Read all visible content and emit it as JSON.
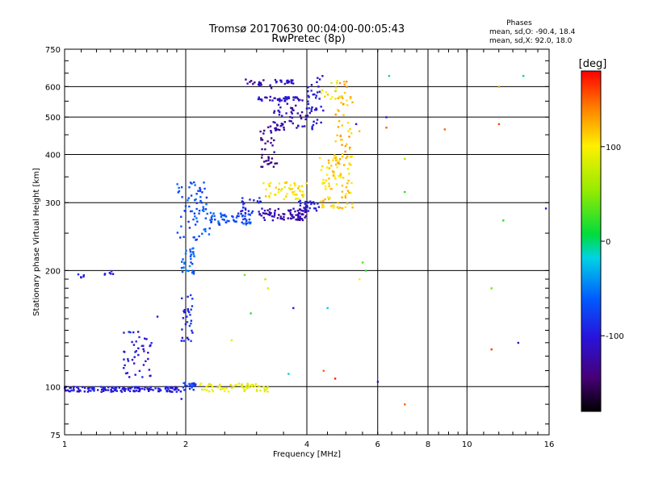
{
  "chart_data": {
    "type": "scatter",
    "title": "Tromsø 20170630 00:04:00-00:05:43",
    "subtitle": "RwPretec (8p)",
    "xlabel": "Frequency [MHz]",
    "ylabel": "Stationary phase Virtual Height [km]",
    "x_scale": "log",
    "y_scale": "log",
    "xlim": [
      1,
      16
    ],
    "ylim": [
      75,
      750
    ],
    "x_ticks": [
      1,
      2,
      4,
      6,
      8,
      10,
      16
    ],
    "y_ticks": [
      75,
      100,
      200,
      300,
      400,
      500,
      600,
      750
    ],
    "grid": true,
    "stats": {
      "title": "Phases",
      "line_o": "mean, sd,O: -90.4, 18.4",
      "line_x": "mean, sd,X:  92.0, 18.0"
    },
    "colorbar": {
      "label": "[deg]",
      "range": [
        -180,
        180
      ],
      "ticks": [
        100,
        0,
        -100
      ],
      "colormap": "rainbow"
    },
    "traces": [
      {
        "x_range": [
          1.0,
          1.95
        ],
        "y_range": [
          97,
          100
        ],
        "phase": -100,
        "n": 150
      },
      {
        "x_range": [
          1.95,
          2.12
        ],
        "y_range": [
          98,
          103
        ],
        "phase": -80,
        "n": 20
      },
      {
        "x_range": [
          2.15,
          3.2
        ],
        "y_range": [
          97,
          102
        ],
        "phase": 95,
        "n": 60
      },
      {
        "x_range": [
          1.08,
          1.12
        ],
        "y_range": [
          192,
          196
        ],
        "phase": -100,
        "n": 5
      },
      {
        "x_range": [
          1.25,
          1.33
        ],
        "y_range": [
          195,
          201
        ],
        "phase": -100,
        "n": 6
      },
      {
        "x_range": [
          1.4,
          1.65
        ],
        "y_range": [
          105,
          140
        ],
        "phase": -100,
        "n": 45
      },
      {
        "x_range": [
          1.95,
          2.08
        ],
        "y_range": [
          130,
          175
        ],
        "phase": -90,
        "n": 30
      },
      {
        "x_range": [
          1.95,
          2.1
        ],
        "y_range": [
          195,
          235
        ],
        "phase": -60,
        "n": 30
      },
      {
        "x_range": [
          1.9,
          2.3
        ],
        "y_range": [
          240,
          340
        ],
        "phase": -70,
        "n": 70
      },
      {
        "x_range": [
          2.3,
          2.9
        ],
        "y_range": [
          263,
          283
        ],
        "phase": -70,
        "n": 60
      },
      {
        "x_range": [
          2.7,
          3.1
        ],
        "y_range": [
          280,
          310
        ],
        "phase": -90,
        "n": 25
      },
      {
        "x_range": [
          3.05,
          4.0
        ],
        "y_range": [
          270,
          290
        ],
        "phase": -125,
        "n": 80
      },
      {
        "x_range": [
          3.8,
          4.3
        ],
        "y_range": [
          285,
          305
        ],
        "phase": -100,
        "n": 30
      },
      {
        "x_range": [
          3.1,
          4.0
        ],
        "y_range": [
          305,
          340
        ],
        "phase": 105,
        "n": 50
      },
      {
        "x_range": [
          3.05,
          3.4
        ],
        "y_range": [
          370,
          480
        ],
        "phase": -135,
        "n": 40
      },
      {
        "x_range": [
          3.3,
          4.0
        ],
        "y_range": [
          460,
          560
        ],
        "phase": -120,
        "n": 50
      },
      {
        "x_range": [
          3.0,
          3.9
        ],
        "y_range": [
          550,
          565
        ],
        "phase": -110,
        "n": 40
      },
      {
        "x_range": [
          3.3,
          3.7
        ],
        "y_range": [
          610,
          625
        ],
        "phase": -110,
        "n": 20
      },
      {
        "x_range": [
          2.8,
          3.3
        ],
        "y_range": [
          595,
          630
        ],
        "phase": -120,
        "n": 15
      },
      {
        "x_range": [
          4.0,
          4.4
        ],
        "y_range": [
          460,
          640
        ],
        "phase": -100,
        "n": 40
      },
      {
        "x_range": [
          4.3,
          5.2
        ],
        "y_range": [
          290,
          400
        ],
        "phase": 110,
        "n": 90
      },
      {
        "x_range": [
          4.7,
          5.2
        ],
        "y_range": [
          380,
          630
        ],
        "phase": 120,
        "n": 50
      },
      {
        "x_range": [
          4.3,
          4.9
        ],
        "y_range": [
          540,
          640
        ],
        "phase": 100,
        "n": 15
      }
    ],
    "points": [
      {
        "x": 6.3,
        "y": 500,
        "phase": -100
      },
      {
        "x": 6.3,
        "y": 470,
        "phase": 150
      },
      {
        "x": 6.0,
        "y": 103,
        "phase": -120
      },
      {
        "x": 7.0,
        "y": 90,
        "phase": 150
      },
      {
        "x": 7.0,
        "y": 320,
        "phase": 20
      },
      {
        "x": 7.0,
        "y": 390,
        "phase": 60
      },
      {
        "x": 8.8,
        "y": 465,
        "phase": 150
      },
      {
        "x": 11.5,
        "y": 180,
        "phase": 40
      },
      {
        "x": 11.5,
        "y": 125,
        "phase": 160
      },
      {
        "x": 12.0,
        "y": 600,
        "phase": 130
      },
      {
        "x": 12.0,
        "y": 480,
        "phase": 160
      },
      {
        "x": 12.3,
        "y": 270,
        "phase": 20
      },
      {
        "x": 13.4,
        "y": 130,
        "phase": -120
      },
      {
        "x": 13.8,
        "y": 640,
        "phase": -10
      },
      {
        "x": 15.7,
        "y": 290,
        "phase": -110
      },
      {
        "x": 3.2,
        "y": 180,
        "phase": 80
      },
      {
        "x": 3.15,
        "y": 190,
        "phase": 70
      },
      {
        "x": 2.8,
        "y": 195,
        "phase": 40
      },
      {
        "x": 2.9,
        "y": 155,
        "phase": 20
      },
      {
        "x": 3.7,
        "y": 160,
        "phase": -100
      },
      {
        "x": 4.7,
        "y": 105,
        "phase": 170
      },
      {
        "x": 4.4,
        "y": 110,
        "phase": 150
      },
      {
        "x": 4.5,
        "y": 160,
        "phase": -20
      },
      {
        "x": 5.6,
        "y": 200,
        "phase": 20
      },
      {
        "x": 5.4,
        "y": 190,
        "phase": 100
      },
      {
        "x": 5.5,
        "y": 210,
        "phase": 30
      },
      {
        "x": 5.3,
        "y": 480,
        "phase": -100
      },
      {
        "x": 5.4,
        "y": 460,
        "phase": 120
      },
      {
        "x": 6.4,
        "y": 640,
        "phase": -10
      },
      {
        "x": 3.6,
        "y": 108,
        "phase": -20
      },
      {
        "x": 2.6,
        "y": 132,
        "phase": 90
      },
      {
        "x": 1.95,
        "y": 93,
        "phase": -100
      },
      {
        "x": 1.7,
        "y": 152,
        "phase": -100
      }
    ]
  }
}
